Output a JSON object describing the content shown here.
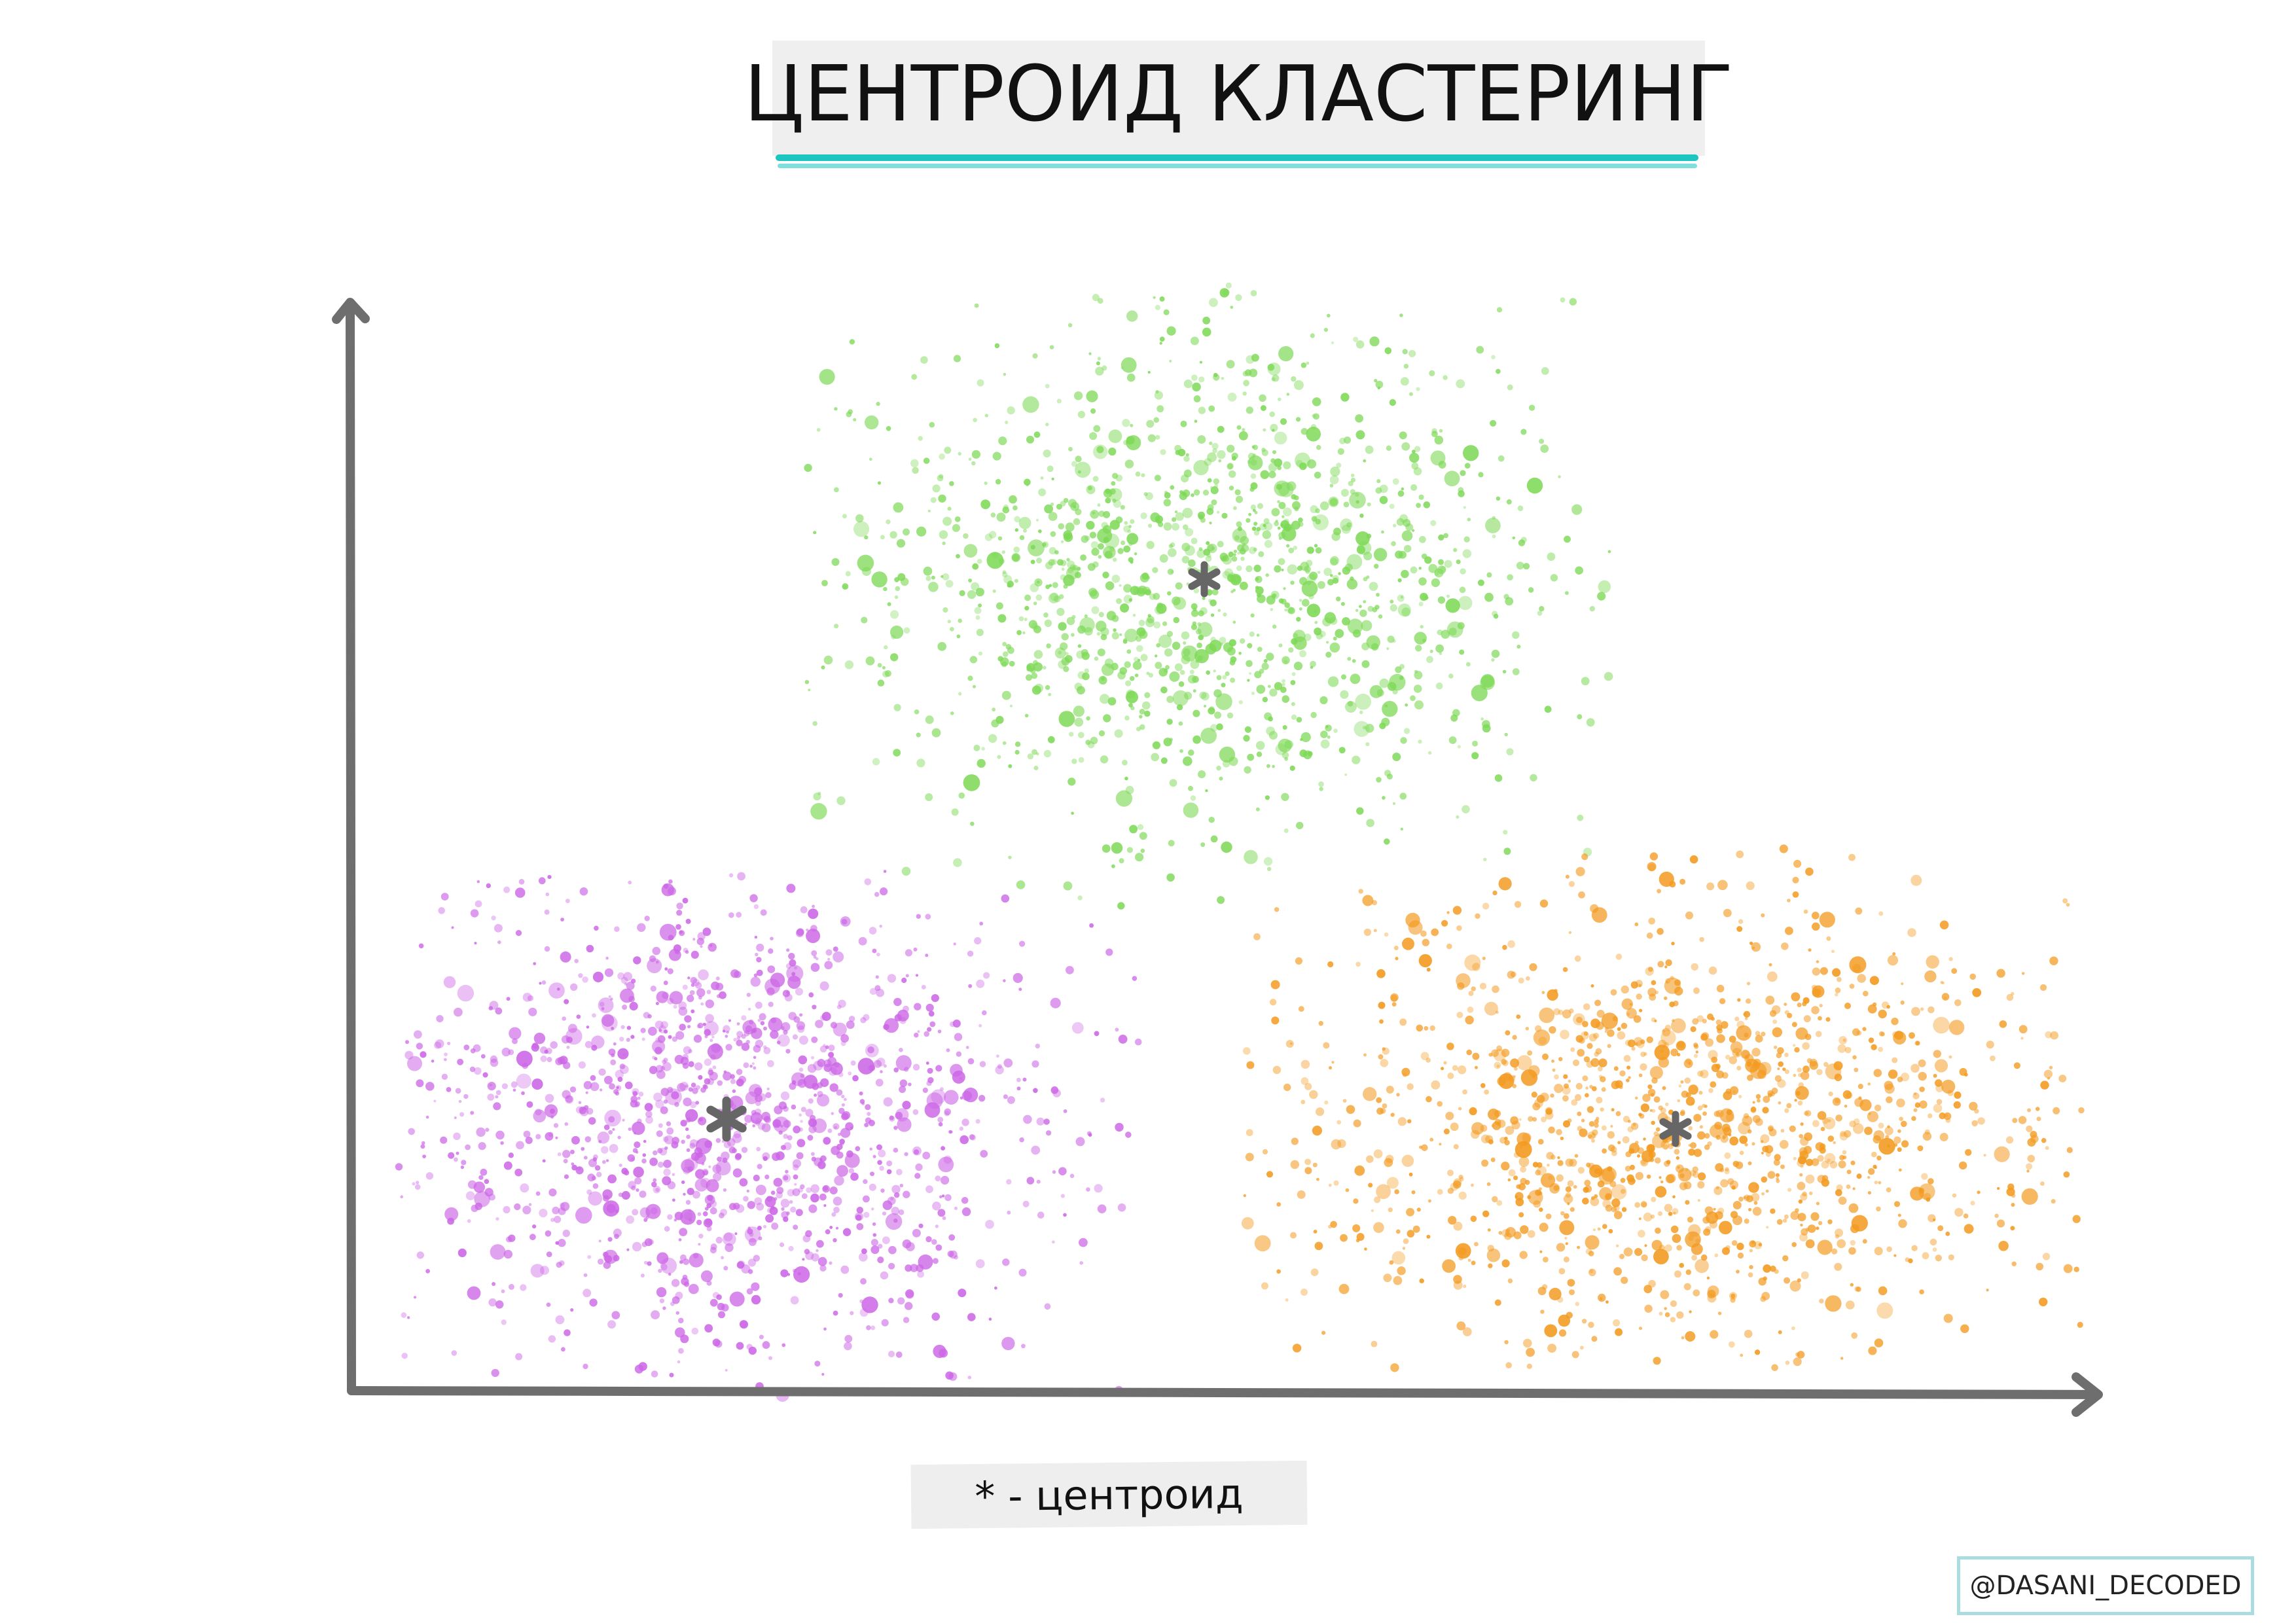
{
  "title": "ЦЕНТРОИД КЛАСТЕРИНГ",
  "legend": "* - центроид",
  "credit": "@DASANI_DECODED",
  "clusters": [
    {
      "color": "#7ed957",
      "centroid_marker": "*"
    },
    {
      "color": "#cc66e6",
      "centroid_marker": "*"
    },
    {
      "color": "#f39a1f",
      "centroid_marker": "*"
    }
  ],
  "colors": {
    "axis": "#6e6e6e",
    "centroid": "#666666",
    "title_underline": "#1cc5c0",
    "credit_border": "#a9dde0"
  }
}
